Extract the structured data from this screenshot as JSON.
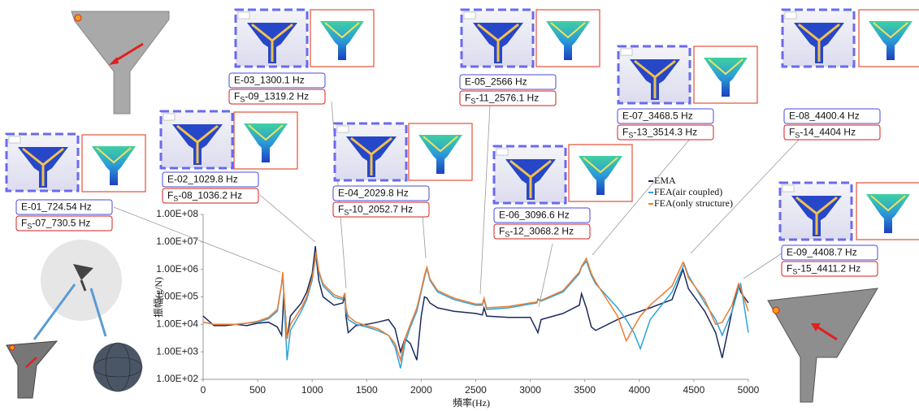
{
  "chart_data": {
    "type": "line",
    "xlabel": "頻率(Hz)",
    "ylabel": "振幅(g/N)",
    "log_y": true,
    "grid": false,
    "legend": "upper right",
    "xlim": [
      0,
      5000
    ],
    "xticks": [
      0,
      500,
      1000,
      1500,
      2000,
      2500,
      3000,
      3500,
      4000,
      4500,
      5000
    ],
    "ylim": [
      100,
      100000000
    ],
    "yticks": [
      {
        "value": 100,
        "label": "1.00E+02"
      },
      {
        "value": 1000,
        "label": "1.00E+03"
      },
      {
        "value": 10000,
        "label": "1.00E+04"
      },
      {
        "value": 100000,
        "label": "1.00E+05"
      },
      {
        "value": 1000000,
        "label": "1.00E+06"
      },
      {
        "value": 10000000,
        "label": "1.00E+07"
      },
      {
        "value": 100000000,
        "label": "1.00E+08"
      }
    ],
    "x": [
      0,
      100,
      200,
      300,
      400,
      500,
      600,
      680,
      720,
      730,
      740,
      770,
      800,
      900,
      950,
      1000,
      1030,
      1036,
      1060,
      1100,
      1200,
      1280,
      1300,
      1310,
      1330,
      1400,
      1500,
      1600,
      1700,
      1760,
      1810,
      1850,
      1900,
      1960,
      2000,
      2030,
      2052,
      2080,
      2150,
      2300,
      2500,
      2560,
      2576,
      2600,
      2800,
      3000,
      3060,
      3070,
      3100,
      3300,
      3450,
      3470,
      3514,
      3560,
      3600,
      3800,
      3880,
      3950,
      4010,
      4100,
      4300,
      4400,
      4411,
      4450,
      4600,
      4700,
      4760,
      4850,
      4910,
      4930,
      5000
    ],
    "series": [
      {
        "name": "EMA",
        "color": "#1c2a5c",
        "values": [
          20000,
          9000,
          9000,
          10000,
          9000,
          11000,
          12000,
          8000,
          4000,
          20000,
          150000,
          3000,
          20000,
          60000,
          150000,
          700000,
          7000000,
          3000000,
          400000,
          100000,
          50000,
          60000,
          100000,
          20000,
          5000,
          9000,
          10000,
          12000,
          15000,
          7000,
          1000,
          3000,
          2000,
          500,
          20000,
          100000,
          90000,
          60000,
          40000,
          30000,
          25000,
          22000,
          40000,
          20000,
          18000,
          18000,
          6000,
          5000,
          15000,
          25000,
          50000,
          130000,
          40000,
          8000,
          6000,
          15000,
          20000,
          25000,
          30000,
          40000,
          80000,
          1000000,
          700000,
          200000,
          30000,
          5000,
          600,
          30000,
          300000,
          150000,
          60000
        ]
      },
      {
        "name": "FEA(air coupled)",
        "color": "#2ea3dc",
        "values": [
          12000,
          10000,
          10000,
          10000,
          11000,
          12000,
          16000,
          30000,
          300000,
          700000,
          100000,
          500,
          6000,
          30000,
          80000,
          400000,
          2500000,
          3500000,
          800000,
          250000,
          100000,
          80000,
          130000,
          30000,
          15000,
          10000,
          8000,
          6000,
          4000,
          1500,
          250,
          2000,
          8000,
          30000,
          150000,
          500000,
          1100000,
          400000,
          150000,
          80000,
          50000,
          50000,
          80000,
          35000,
          40000,
          55000,
          60000,
          80000,
          70000,
          150000,
          700000,
          1200000,
          2000000,
          600000,
          300000,
          40000,
          15000,
          5000,
          1300,
          15000,
          150000,
          1200000,
          1600000,
          600000,
          60000,
          15000,
          4000,
          30000,
          200000,
          300000,
          5000
        ]
      },
      {
        "name": "FEA(only structure)",
        "color": "#ed7d31",
        "values": [
          12000,
          10000,
          10000,
          10000,
          11000,
          13000,
          18000,
          35000,
          300000,
          800000,
          150000,
          3000,
          10000,
          40000,
          100000,
          500000,
          3000000,
          4500000,
          900000,
          300000,
          120000,
          90000,
          140000,
          40000,
          20000,
          12000,
          9000,
          7000,
          4000,
          2000,
          500,
          3000,
          10000,
          40000,
          180000,
          600000,
          1200000,
          450000,
          170000,
          90000,
          55000,
          55000,
          90000,
          40000,
          45000,
          60000,
          65000,
          85000,
          75000,
          170000,
          800000,
          1300000,
          2500000,
          700000,
          350000,
          20000,
          2500,
          8000,
          20000,
          50000,
          250000,
          1800000,
          1500000,
          500000,
          80000,
          10000,
          12000,
          50000,
          300000,
          200000,
          30000
        ]
      }
    ],
    "annotations": [
      {
        "ema": "E-01_724.54 Hz",
        "fea": {
          "letter": "F",
          "sub": "S",
          "rest": "-07_730.5 Hz"
        }
      },
      {
        "ema": "E-02_1029.8 Hz",
        "fea": {
          "letter": "F",
          "sub": "S",
          "rest": "-08_1036.2 Hz"
        }
      },
      {
        "ema": "E-03_1300.1 Hz",
        "fea": {
          "letter": "F",
          "sub": "S",
          "rest": "-09_1319.2 Hz"
        }
      },
      {
        "ema": "E-04_2029.8 Hz",
        "fea": {
          "letter": "F",
          "sub": "S",
          "rest": "-10_2052.7 Hz"
        }
      },
      {
        "ema": "E-05_2566 Hz",
        "fea": {
          "letter": "F",
          "sub": "S",
          "rest": "-11_2576.1 Hz"
        }
      },
      {
        "ema": "E-06_3096.6 Hz",
        "fea": {
          "letter": "F",
          "sub": "S",
          "rest": "-12_3068.2 Hz"
        }
      },
      {
        "ema": "E-07_3468.5 Hz",
        "fea": {
          "letter": "F",
          "sub": "S",
          "rest": "-13_3514.3 Hz"
        }
      },
      {
        "ema": "E-08_4400.4 Hz",
        "fea": {
          "letter": "F",
          "sub": "S",
          "rest": "-14_4404 Hz"
        }
      },
      {
        "ema": "E-09_4408.7 Hz",
        "fea": {
          "letter": "F",
          "sub": "S",
          "rest": "-15_4411.2 Hz"
        }
      }
    ]
  }
}
